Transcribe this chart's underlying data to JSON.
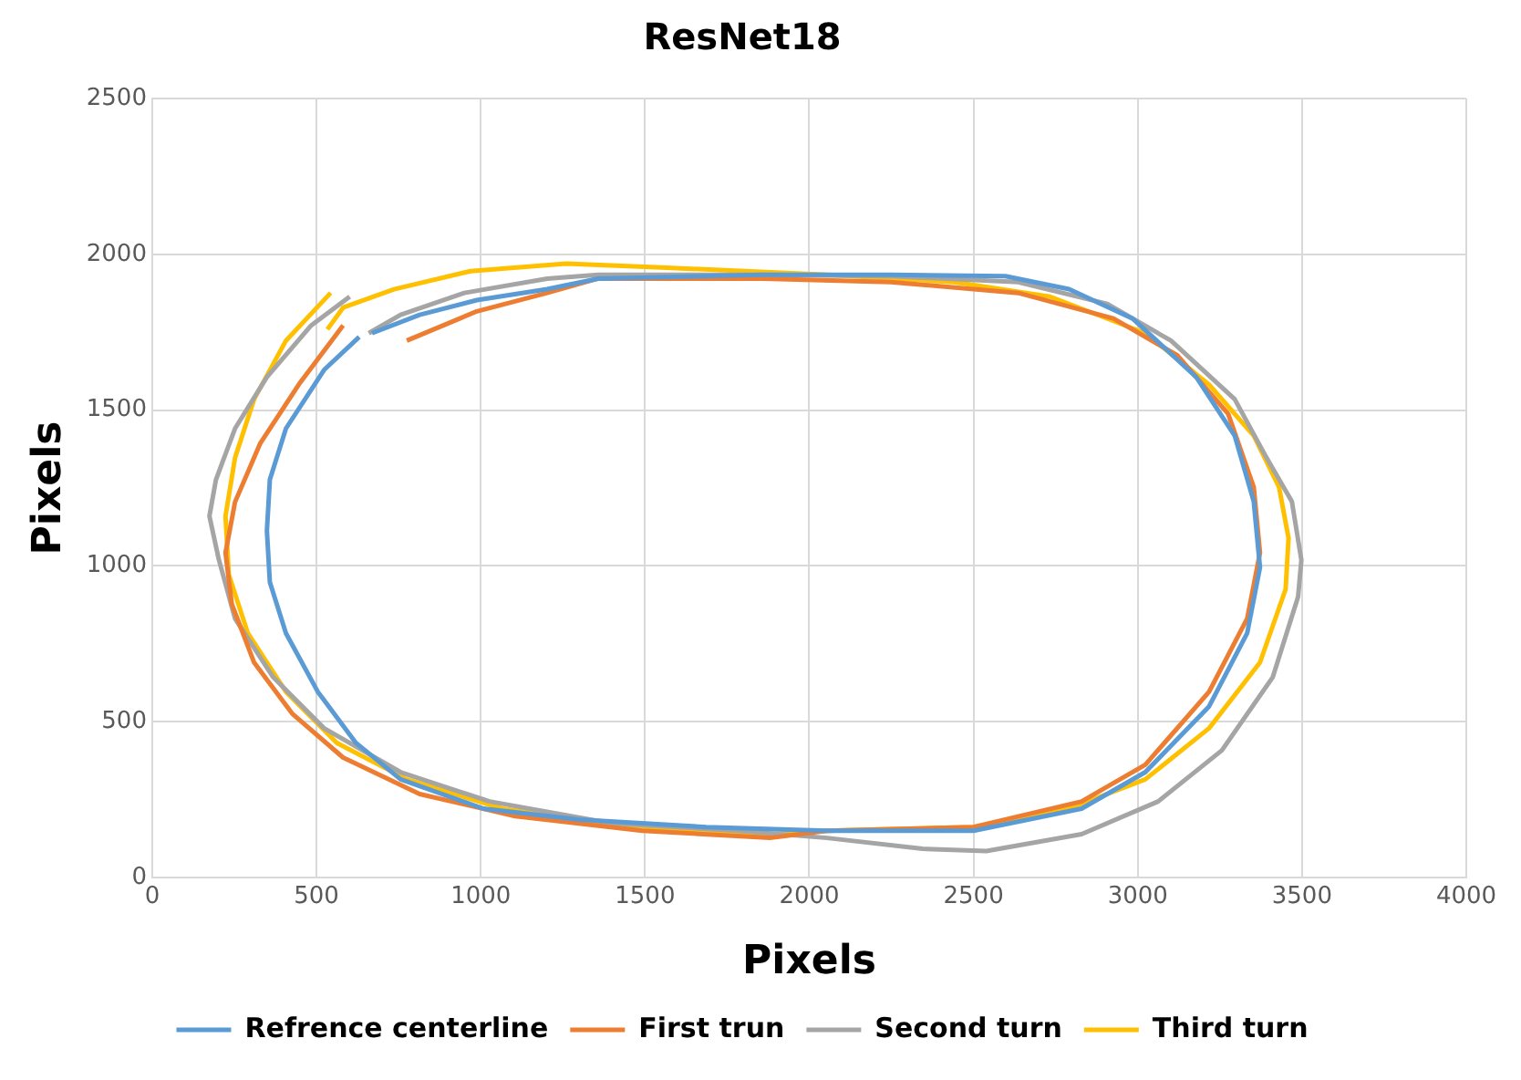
{
  "chart_data": {
    "type": "line",
    "title": "ResNet18",
    "xlabel": "Pixels",
    "ylabel": "Pixels",
    "xlim": [
      0,
      4000
    ],
    "xticks": [
      0,
      500,
      1000,
      1500,
      2000,
      2500,
      3000,
      3500,
      4000
    ],
    "ylim": [
      0,
      2500
    ],
    "yticks": [
      0,
      500,
      1000,
      1500,
      2000,
      2500
    ],
    "grid": true,
    "legend": "bottom",
    "marker": "none",
    "line_style": "solid",
    "series": [
      {
        "name": "Refrence centerline",
        "color": "#5b9bd5",
        "x": [
          630,
          523,
          407,
          358,
          349,
          358,
          407,
          504,
          620,
          756,
          1008,
          1299,
          1686,
          2054,
          2500,
          2829,
          3023,
          3217,
          3333,
          3372,
          3353,
          3295,
          3178,
          2984,
          2791,
          2597,
          2248,
          1860,
          1357,
          1202,
          988,
          814,
          669
        ],
        "values": [
          1735,
          1629,
          1441,
          1277,
          1113,
          948,
          784,
          596,
          432,
          315,
          221,
          186,
          162,
          150,
          150,
          221,
          338,
          549,
          784,
          995,
          1207,
          1418,
          1606,
          1794,
          1888,
          1930,
          1934,
          1934,
          1922,
          1888,
          1853,
          1806,
          1747
        ]
      },
      {
        "name": "First trun",
        "color": "#ed7d31",
        "x": [
          581,
          446,
          329,
          252,
          223,
          242,
          310,
          426,
          581,
          814,
          1105,
          1492,
          1880,
          2054,
          2500,
          2829,
          3023,
          3217,
          3333,
          3372,
          3353,
          3275,
          3120,
          2926,
          2636,
          2248,
          1860,
          1357,
          1202,
          988,
          775
        ],
        "values": [
          1772,
          1582,
          1394,
          1205,
          1042,
          878,
          690,
          526,
          385,
          268,
          197,
          150,
          127,
          150,
          162,
          244,
          362,
          596,
          831,
          1042,
          1253,
          1488,
          1676,
          1794,
          1876,
          1911,
          1922,
          1922,
          1876,
          1817,
          1723
        ]
      },
      {
        "name": "Second turn",
        "color": "#a5a5a5",
        "x": [
          601,
          484,
          349,
          252,
          194,
          174,
          203,
          252,
          368,
          523,
          756,
          1027,
          1395,
          1783,
          2054,
          2345,
          2539,
          2829,
          3062,
          3256,
          3411,
          3488,
          3498,
          3469,
          3392,
          3295,
          3101,
          2907,
          2636,
          2248,
          1860,
          1357,
          1202,
          950,
          756,
          659
        ],
        "values": [
          1864,
          1772,
          1606,
          1441,
          1277,
          1160,
          1019,
          831,
          643,
          479,
          338,
          244,
          174,
          150,
          127,
          92,
          85,
          139,
          244,
          408,
          643,
          901,
          1019,
          1207,
          1347,
          1535,
          1723,
          1841,
          1911,
          1930,
          1934,
          1934,
          1922,
          1876,
          1806,
          1747
        ]
      },
      {
        "name": "Third turn",
        "color": "#ffc000",
        "x": [
          543,
          407,
          310,
          252,
          223,
          233,
          291,
          407,
          562,
          775,
          1066,
          1453,
          1880,
          2054,
          2500,
          2791,
          3023,
          3217,
          3372,
          3450,
          3459,
          3430,
          3353,
          3217,
          3023,
          2733,
          2442,
          2054,
          1550,
          1260,
          969,
          736,
          581,
          533
        ],
        "values": [
          1876,
          1723,
          1535,
          1347,
          1160,
          972,
          784,
          596,
          432,
          315,
          221,
          162,
          139,
          150,
          162,
          221,
          315,
          479,
          690,
          925,
          1089,
          1253,
          1418,
          1582,
          1747,
          1864,
          1911,
          1934,
          1958,
          1970,
          1946,
          1888,
          1829,
          1759
        ]
      }
    ]
  }
}
